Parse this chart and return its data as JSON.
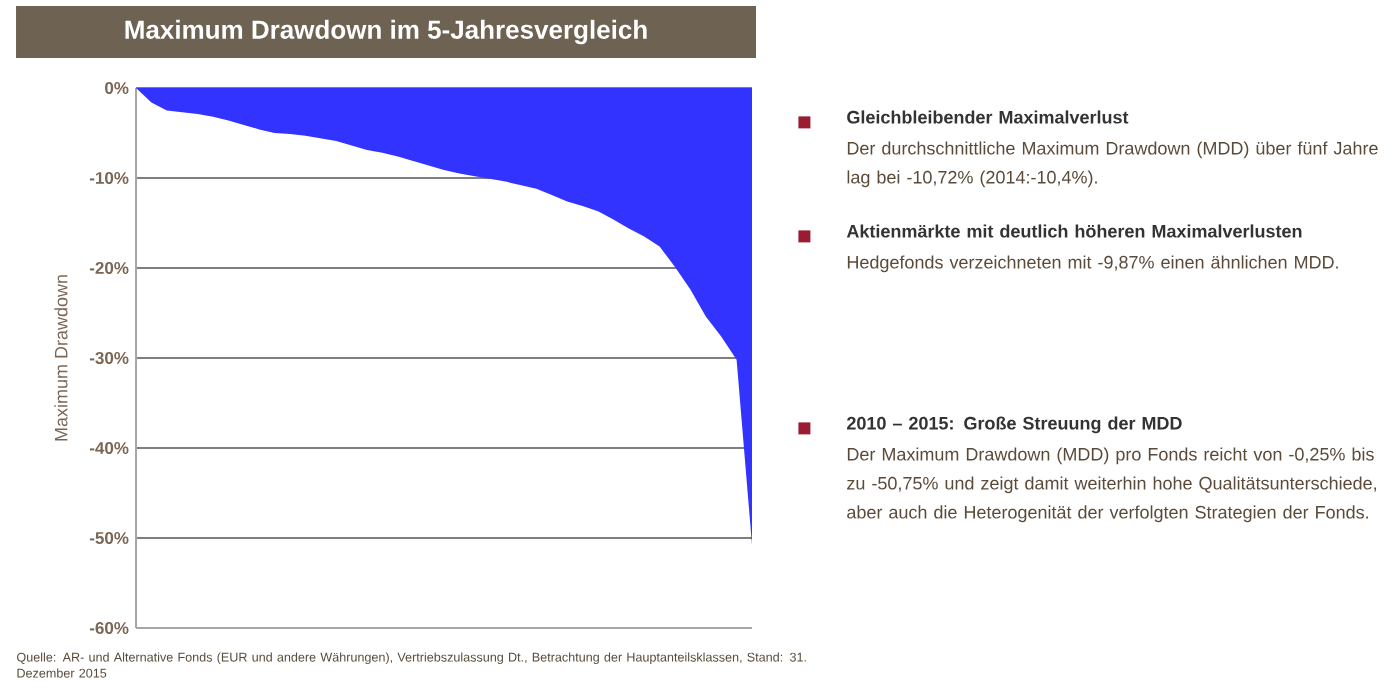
{
  "chart_data": {
    "type": "area",
    "title": "Maximum Drawdown im 5-Jahresvergleich",
    "ylabel": "Maximum Drawdown",
    "categories": [
      null,
      null,
      null,
      null,
      null,
      null,
      null,
      null,
      null,
      null,
      null,
      null,
      null,
      null,
      null,
      null,
      null,
      null,
      null,
      null,
      null,
      null,
      null,
      null,
      null,
      null,
      null,
      null,
      null,
      null,
      null,
      null,
      null,
      null,
      null,
      null,
      null,
      null,
      null,
      null,
      null
    ],
    "values": [
      0,
      -1.6,
      -2.5,
      -2.7,
      -2.9,
      -3.2,
      -3.6,
      -4.1,
      -4.6,
      -5.0,
      -5.1,
      -5.3,
      -5.6,
      -5.9,
      -6.4,
      -6.9,
      -7.2,
      -7.6,
      -8.1,
      -8.6,
      -9.1,
      -9.5,
      -9.8,
      -10.1,
      -10.4,
      -10.8,
      -11.2,
      -11.9,
      -12.6,
      -13.1,
      -13.7,
      -14.6,
      -15.6,
      -16.5,
      -17.6,
      -19.9,
      -22.4,
      -25.4,
      -27.6,
      -30.2,
      -50.75
    ],
    "color": "#3333ff",
    "ylim": [
      -60,
      0
    ],
    "yticks": [
      {
        "value": -60,
        "label": "-60%"
      },
      {
        "value": -50,
        "label": "-50%"
      },
      {
        "value": -40,
        "label": "-40%"
      },
      {
        "value": -30,
        "label": "-30%"
      },
      {
        "value": -20,
        "label": "-20%"
      },
      {
        "value": -10,
        "label": "-10%"
      },
      {
        "value": 0,
        "label": "0%"
      }
    ],
    "tick_labels": "y",
    "grid": "y",
    "annotations": [
      "Gleichbleibender Maximalverlust",
      "Der durchschnittliche Maximum Drawdown (MDD) über fünf Jahre lag bei -10,72% (2014:-10,4%).",
      "Aktienmärkte mit deutlich höheren Maximalverlusten",
      "Hedgefonds verzeichneten mit -9,87% einen ähnlichen MDD.",
      "2010 – 2015: Große Streuung der MDD",
      "Der Maximum Drawdown (MDD) pro Fonds reicht von -0,25% bis zu -50,75% und zeigt damit weiterhin hohe Qualitätsunterschiede, aber auch die Heterogenität der verfolgten Strategien der Fonds.",
      "Quelle: AR- und Alternative Fonds (EUR und andere Währungen), Vertriebszulassung Dt., Betrachtung der Hauptanteilsklassen, Stand: 31. Dezember 2015"
    ]
  }
}
